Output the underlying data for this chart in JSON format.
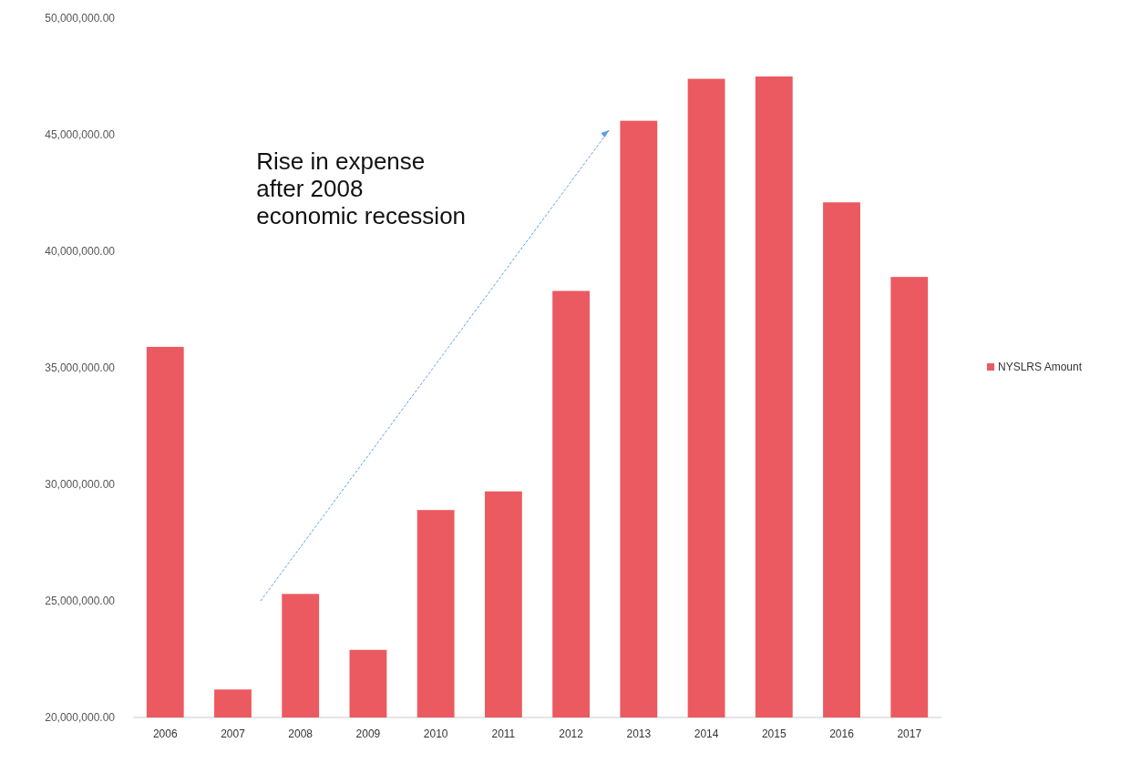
{
  "chart_data": {
    "type": "bar",
    "categories": [
      "2006",
      "2007",
      "2008",
      "2009",
      "2010",
      "2011",
      "2012",
      "2013",
      "2014",
      "2015",
      "2016",
      "2017"
    ],
    "series": [
      {
        "name": "NYSLRS Amount",
        "color": "#eb5a60",
        "values": [
          35900000,
          21200000,
          25300000,
          22900000,
          28900000,
          29700000,
          38300000,
          45600000,
          47400000,
          47500000,
          42100000,
          38900000
        ]
      }
    ],
    "ylim": [
      20000000,
      50000000
    ],
    "yticks": [
      {
        "value": 20000000,
        "label": "20,000,000.00"
      },
      {
        "value": 25000000,
        "label": "25,000,000.00"
      },
      {
        "value": 30000000,
        "label": "30,000,000.00"
      },
      {
        "value": 35000000,
        "label": "35,000,000.00"
      },
      {
        "value": 40000000,
        "label": "40,000,000.00"
      },
      {
        "value": 45000000,
        "label": "45,000,000.00"
      },
      {
        "value": 50000000,
        "label": "50,000,000.00"
      }
    ],
    "annotations": [
      "Rise in expense\nafter 2008\neconomic recession"
    ],
    "legend": "right",
    "grid": false
  }
}
